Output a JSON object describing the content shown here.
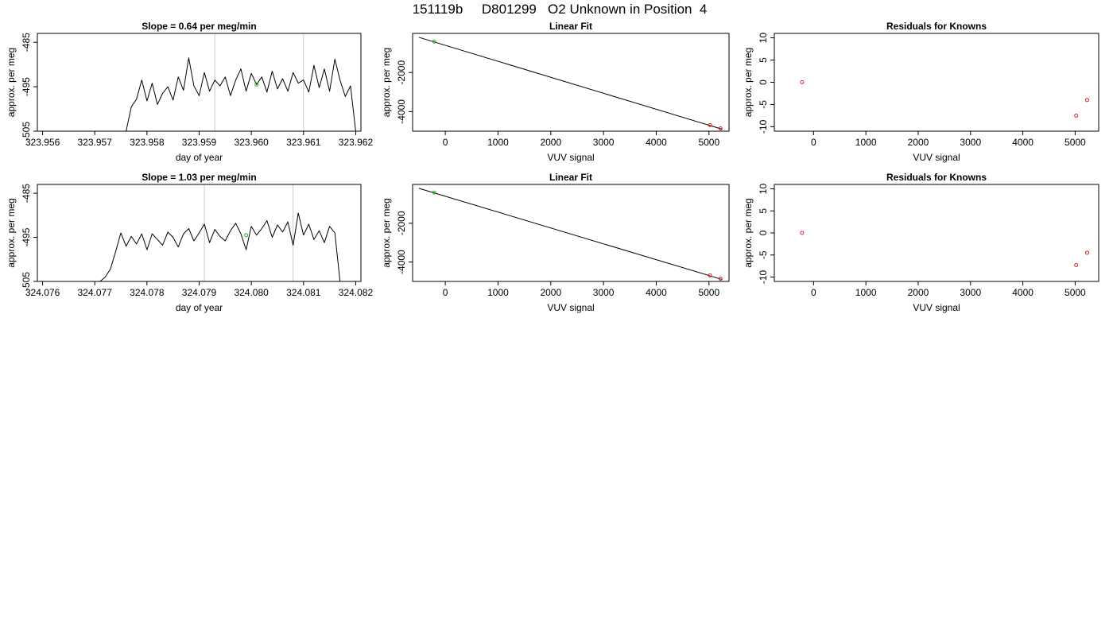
{
  "page": {
    "title": "151119b     D801299   O2 Unknown in Position  4"
  },
  "colors": {
    "frame": "#000000",
    "series": "#000000",
    "vline": "#c8c8c8",
    "standard_marker": "#22b022",
    "residual_marker": "#e0202a"
  },
  "chart_data": [
    {
      "type": "line",
      "row": 1,
      "col": 1,
      "title": "Slope =  0.64  per meg/min",
      "xlabel": "day of year",
      "ylabel": "approx. per meg",
      "xlim": [
        323.9559,
        323.9621
      ],
      "ylim": [
        -505,
        -483
      ],
      "xticks": [
        {
          "v": 323.956,
          "label": "323.956"
        },
        {
          "v": 323.957,
          "label": "323.957"
        },
        {
          "v": 323.958,
          "label": "323.958"
        },
        {
          "v": 323.959,
          "label": "323.959"
        },
        {
          "v": 323.96,
          "label": "323.960"
        },
        {
          "v": 323.961,
          "label": "323.961"
        },
        {
          "v": 323.962,
          "label": "323.962"
        }
      ],
      "yticks": [
        {
          "v": -505,
          "label": "-505"
        },
        {
          "v": -495,
          "label": "-495"
        },
        {
          "v": -485,
          "label": "-485"
        }
      ],
      "vlines": [
        323.9593,
        323.961
      ],
      "series": [
        {
          "style": "line",
          "x": [
            323.9576,
            323.9577,
            323.9578,
            323.9579,
            323.958,
            323.9581,
            323.9582,
            323.9583,
            323.9584,
            323.9585,
            323.9586,
            323.9587,
            323.9588,
            323.9589,
            323.959,
            323.9591,
            323.9592,
            323.9593,
            323.9594,
            323.9595,
            323.9596,
            323.9597,
            323.9598,
            323.9599,
            323.96,
            323.9601,
            323.9602,
            323.9603,
            323.9604,
            323.9605,
            323.9606,
            323.9607,
            323.9608,
            323.9609,
            323.961,
            323.9611,
            323.9612,
            323.9613,
            323.9614,
            323.9615,
            323.9616,
            323.9617,
            323.9618,
            323.9619,
            323.962
          ],
          "y": [
            -505,
            -499.5,
            -497.8,
            -493.5,
            -498.2,
            -494.2,
            -499.0,
            -496.5,
            -495.0,
            -498.0,
            -492.8,
            -495.8,
            -488.5,
            -494.8,
            -497.0,
            -491.8,
            -496.0,
            -493.5,
            -494.8,
            -492.8,
            -497.0,
            -493.5,
            -491.0,
            -496.0,
            -492.0,
            -494.5,
            -492.8,
            -496.2,
            -491.5,
            -495.5,
            -493.2,
            -496.0,
            -491.8,
            -494.2,
            -493.5,
            -496.2,
            -490.2,
            -495.2,
            -491.0,
            -496.0,
            -488.8,
            -493.5,
            -497.2,
            -494.8,
            -505
          ]
        },
        {
          "style": "point",
          "x": [
            323.9601
          ],
          "y": [
            -494.5
          ]
        }
      ]
    },
    {
      "type": "scatter",
      "row": 1,
      "col": 2,
      "title": "Linear Fit",
      "xlabel": "VUV signal",
      "ylabel": "approx. per meg",
      "xlim": [
        -620,
        5380
      ],
      "ylim": [
        -5000,
        0
      ],
      "xticks": [
        {
          "v": 0,
          "label": "0"
        },
        {
          "v": 1000,
          "label": "1000"
        },
        {
          "v": 2000,
          "label": "2000"
        },
        {
          "v": 3000,
          "label": "3000"
        },
        {
          "v": 4000,
          "label": "4000"
        },
        {
          "v": 5000,
          "label": "5000"
        }
      ],
      "yticks": [
        {
          "v": -2000,
          "label": "-2000"
        },
        {
          "v": -4000,
          "label": "-4000"
        }
      ],
      "fit_line": {
        "x": [
          -500,
          5250
        ],
        "y": [
          -200,
          -4900
        ]
      },
      "series": [
        {
          "style": "point",
          "marker": "standard",
          "x": [
            -210
          ],
          "y": [
            -420
          ]
        },
        {
          "style": "point",
          "marker": "residual",
          "x": [
            5020,
            5220
          ],
          "y": [
            -4690,
            -4860
          ]
        }
      ]
    },
    {
      "type": "scatter",
      "row": 1,
      "col": 3,
      "title": "Residuals for Knowns",
      "xlabel": "VUV signal",
      "ylabel": "approx. per meg",
      "xlim": [
        -750,
        5450
      ],
      "ylim": [
        -11,
        11
      ],
      "xticks": [
        {
          "v": 0,
          "label": "0"
        },
        {
          "v": 1000,
          "label": "1000"
        },
        {
          "v": 2000,
          "label": "2000"
        },
        {
          "v": 3000,
          "label": "3000"
        },
        {
          "v": 4000,
          "label": "4000"
        },
        {
          "v": 5000,
          "label": "5000"
        }
      ],
      "yticks": [
        {
          "v": -10,
          "label": "-10"
        },
        {
          "v": -5,
          "label": "-5"
        },
        {
          "v": 0,
          "label": "0"
        },
        {
          "v": 5,
          "label": "5"
        },
        {
          "v": 10,
          "label": "10"
        }
      ],
      "series": [
        {
          "style": "point",
          "marker": "residual",
          "x": [
            -220,
            5020,
            5230
          ],
          "y": [
            0.0,
            -7.5,
            -4.0
          ]
        }
      ]
    },
    {
      "type": "line",
      "row": 2,
      "col": 1,
      "title": "Slope =  1.03  per meg/min",
      "xlabel": "day of year",
      "ylabel": "approx. per meg",
      "xlim": [
        324.0759,
        324.0821
      ],
      "ylim": [
        -505,
        -483
      ],
      "xticks": [
        {
          "v": 324.076,
          "label": "324.076"
        },
        {
          "v": 324.077,
          "label": "324.077"
        },
        {
          "v": 324.078,
          "label": "324.078"
        },
        {
          "v": 324.079,
          "label": "324.079"
        },
        {
          "v": 324.08,
          "label": "324.080"
        },
        {
          "v": 324.081,
          "label": "324.081"
        },
        {
          "v": 324.082,
          "label": "324.082"
        }
      ],
      "yticks": [
        {
          "v": -505,
          "label": "-505"
        },
        {
          "v": -495,
          "label": "-495"
        },
        {
          "v": -485,
          "label": "-485"
        }
      ],
      "vlines": [
        324.0791,
        324.0808
      ],
      "series": [
        {
          "style": "line",
          "x": [
            324.0771,
            324.0772,
            324.0773,
            324.0774,
            324.0775,
            324.0776,
            324.0777,
            324.0778,
            324.0779,
            324.078,
            324.0781,
            324.0782,
            324.0783,
            324.0784,
            324.0785,
            324.0786,
            324.0787,
            324.0788,
            324.0789,
            324.079,
            324.0791,
            324.0792,
            324.0793,
            324.0794,
            324.0795,
            324.0796,
            324.0797,
            324.0798,
            324.0799,
            324.08,
            324.0801,
            324.0802,
            324.0803,
            324.0804,
            324.0805,
            324.0806,
            324.0807,
            324.0808,
            324.0809,
            324.081,
            324.0811,
            324.0812,
            324.0813,
            324.0814,
            324.0815,
            324.0816,
            324.0817
          ],
          "y": [
            -505,
            -504,
            -502.2,
            -498.2,
            -494.0,
            -497.0,
            -494.8,
            -496.5,
            -494.2,
            -497.8,
            -494.2,
            -495.5,
            -496.8,
            -493.8,
            -495.0,
            -497.2,
            -494.2,
            -493.0,
            -495.8,
            -494.0,
            -492.0,
            -496.2,
            -493.2,
            -494.8,
            -495.8,
            -493.5,
            -491.8,
            -494.2,
            -497.8,
            -492.5,
            -494.5,
            -493.0,
            -491.2,
            -495.0,
            -492.2,
            -493.8,
            -491.5,
            -496.8,
            -489.5,
            -494.5,
            -492.0,
            -495.5,
            -493.5,
            -496.2,
            -492.5,
            -494.0,
            -505
          ]
        },
        {
          "style": "point",
          "x": [
            324.0799
          ],
          "y": [
            -494.5
          ]
        }
      ]
    },
    {
      "type": "scatter",
      "row": 2,
      "col": 2,
      "title": "Linear Fit",
      "xlabel": "VUV signal",
      "ylabel": "approx. per meg",
      "xlim": [
        -620,
        5380
      ],
      "ylim": [
        -5000,
        0
      ],
      "xticks": [
        {
          "v": 0,
          "label": "0"
        },
        {
          "v": 1000,
          "label": "1000"
        },
        {
          "v": 2000,
          "label": "2000"
        },
        {
          "v": 3000,
          "label": "3000"
        },
        {
          "v": 4000,
          "label": "4000"
        },
        {
          "v": 5000,
          "label": "5000"
        }
      ],
      "yticks": [
        {
          "v": -2000,
          "label": "-2000"
        },
        {
          "v": -4000,
          "label": "-4000"
        }
      ],
      "fit_line": {
        "x": [
          -500,
          5250
        ],
        "y": [
          -200,
          -4900
        ]
      },
      "series": [
        {
          "style": "point",
          "marker": "standard",
          "x": [
            -210
          ],
          "y": [
            -420
          ]
        },
        {
          "style": "point",
          "marker": "residual",
          "x": [
            5020,
            5220
          ],
          "y": [
            -4690,
            -4860
          ]
        }
      ]
    },
    {
      "type": "scatter",
      "row": 2,
      "col": 3,
      "title": "Residuals for Knowns",
      "xlabel": "VUV signal",
      "ylabel": "approx. per meg",
      "xlim": [
        -750,
        5450
      ],
      "ylim": [
        -11,
        11
      ],
      "xticks": [
        {
          "v": 0,
          "label": "0"
        },
        {
          "v": 1000,
          "label": "1000"
        },
        {
          "v": 2000,
          "label": "2000"
        },
        {
          "v": 3000,
          "label": "3000"
        },
        {
          "v": 4000,
          "label": "4000"
        },
        {
          "v": 5000,
          "label": "5000"
        }
      ],
      "yticks": [
        {
          "v": -10,
          "label": "-10"
        },
        {
          "v": -5,
          "label": "-5"
        },
        {
          "v": 0,
          "label": "0"
        },
        {
          "v": 5,
          "label": "5"
        },
        {
          "v": 10,
          "label": "10"
        }
      ],
      "series": [
        {
          "style": "point",
          "marker": "residual",
          "x": [
            -220,
            5020,
            5230
          ],
          "y": [
            0.0,
            -7.3,
            -4.5
          ]
        }
      ]
    }
  ]
}
